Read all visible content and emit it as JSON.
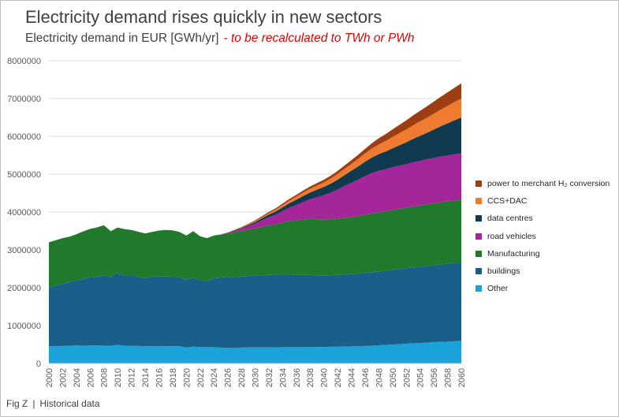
{
  "title": "Electricity demand rises quickly in new sectors",
  "subtitle": "Electricity demand in EUR [GWh/yr]",
  "subtitle_note": "- to be recalculated to TWh or PWh",
  "footer": {
    "fig": "Fig Z",
    "caption": "Historical data"
  },
  "chart_data": {
    "type": "area",
    "stacked": true,
    "x": [
      2000,
      2001,
      2002,
      2003,
      2004,
      2005,
      2006,
      2007,
      2008,
      2009,
      2010,
      2011,
      2012,
      2013,
      2014,
      2015,
      2016,
      2017,
      2018,
      2019,
      2020,
      2021,
      2022,
      2023,
      2024,
      2025,
      2026,
      2027,
      2028,
      2029,
      2030,
      2031,
      2032,
      2033,
      2034,
      2035,
      2036,
      2037,
      2038,
      2039,
      2040,
      2041,
      2042,
      2043,
      2044,
      2045,
      2046,
      2047,
      2048,
      2049,
      2050,
      2051,
      2052,
      2053,
      2054,
      2055,
      2056,
      2057,
      2058,
      2059,
      2060
    ],
    "x_ticks": [
      "2000",
      "2002",
      "2004",
      "2006",
      "2008",
      "2010",
      "2012",
      "2014",
      "2016",
      "2018",
      "2020",
      "2022",
      "2024",
      "2026",
      "2028",
      "2030",
      "2032",
      "2034",
      "2036",
      "2038",
      "2040",
      "2042",
      "2044",
      "2046",
      "2048",
      "2050",
      "2052",
      "2054",
      "2056",
      "2058",
      "2060"
    ],
    "y_ticks": [
      "0",
      "1000000",
      "2000000",
      "3000000",
      "4000000",
      "5000000",
      "6000000",
      "7000000",
      "8000000"
    ],
    "ylim": [
      0,
      8000000
    ],
    "grid": true,
    "legend_position": "right",
    "series": [
      {
        "name": "Other",
        "color": "#1aa3d9",
        "values": [
          450000,
          455000,
          460000,
          470000,
          475000,
          470000,
          475000,
          475000,
          470000,
          465000,
          490000,
          470000,
          465000,
          460000,
          455000,
          455000,
          450000,
          455000,
          455000,
          455000,
          420000,
          445000,
          430000,
          430000,
          430000,
          420000,
          410000,
          410000,
          420000,
          425000,
          425000,
          425000,
          425000,
          425000,
          430000,
          430000,
          430000,
          430000,
          430000,
          435000,
          435000,
          440000,
          440000,
          445000,
          450000,
          455000,
          460000,
          470000,
          480000,
          490000,
          500000,
          510000,
          520000,
          530000,
          540000,
          550000,
          560000,
          570000,
          575000,
          585000,
          590000
        ]
      },
      {
        "name": "buildings",
        "color": "#1a5f8a",
        "values": [
          1550000,
          1600000,
          1640000,
          1680000,
          1720000,
          1760000,
          1800000,
          1820000,
          1850000,
          1820000,
          1900000,
          1850000,
          1860000,
          1830000,
          1800000,
          1840000,
          1860000,
          1840000,
          1840000,
          1830000,
          1790000,
          1820000,
          1770000,
          1740000,
          1830000,
          1850000,
          1870000,
          1880000,
          1880000,
          1890000,
          1900000,
          1905000,
          1910000,
          1925000,
          1915000,
          1915000,
          1905000,
          1905000,
          1905000,
          1895000,
          1890000,
          1890000,
          1895000,
          1900000,
          1910000,
          1920000,
          1930000,
          1940000,
          1950000,
          1960000,
          1975000,
          1985000,
          1995000,
          2005000,
          2015000,
          2025000,
          2035000,
          2045000,
          2060000,
          2070000,
          2080000
        ]
      },
      {
        "name": "Manufacturing",
        "color": "#217a2c",
        "values": [
          1200000,
          1200000,
          1210000,
          1200000,
          1220000,
          1260000,
          1280000,
          1300000,
          1330000,
          1210000,
          1200000,
          1230000,
          1200000,
          1190000,
          1180000,
          1180000,
          1200000,
          1230000,
          1220000,
          1190000,
          1170000,
          1230000,
          1160000,
          1140000,
          1120000,
          1130000,
          1150000,
          1180000,
          1200000,
          1220000,
          1240000,
          1280000,
          1320000,
          1330000,
          1380000,
          1420000,
          1450000,
          1470000,
          1480000,
          1480000,
          1480000,
          1480000,
          1490000,
          1500000,
          1510000,
          1520000,
          1540000,
          1550000,
          1560000,
          1570000,
          1580000,
          1590000,
          1600000,
          1610000,
          1620000,
          1630000,
          1635000,
          1640000,
          1645000,
          1650000,
          1655000
        ]
      },
      {
        "name": "road vehicles",
        "color": "#a4269a",
        "values": [
          0,
          0,
          0,
          0,
          0,
          0,
          0,
          0,
          0,
          0,
          0,
          0,
          0,
          0,
          0,
          0,
          0,
          0,
          0,
          0,
          0,
          0,
          0,
          0,
          0,
          5000,
          15000,
          30000,
          60000,
          90000,
          130000,
          170000,
          210000,
          250000,
          300000,
          350000,
          400000,
          460000,
          520000,
          580000,
          640000,
          700000,
          770000,
          840000,
          900000,
          960000,
          1020000,
          1070000,
          1100000,
          1110000,
          1130000,
          1140000,
          1150000,
          1170000,
          1180000,
          1190000,
          1200000,
          1210000,
          1215000,
          1220000,
          1225000
        ]
      },
      {
        "name": "data centres",
        "color": "#0f3a50",
        "values": [
          0,
          0,
          0,
          0,
          0,
          0,
          0,
          0,
          0,
          0,
          0,
          0,
          0,
          0,
          0,
          0,
          0,
          0,
          0,
          0,
          0,
          0,
          0,
          0,
          0,
          5000,
          10000,
          15000,
          20000,
          30000,
          40000,
          55000,
          70000,
          85000,
          100000,
          120000,
          140000,
          160000,
          180000,
          200000,
          220000,
          240000,
          260000,
          290000,
          320000,
          350000,
          380000,
          410000,
          440000,
          470000,
          500000,
          540000,
          580000,
          620000,
          660000,
          700000,
          750000,
          800000,
          850000,
          900000,
          950000
        ]
      },
      {
        "name": "CCS+DAC",
        "color": "#ee7b30",
        "values": [
          0,
          0,
          0,
          0,
          0,
          0,
          0,
          0,
          0,
          0,
          0,
          0,
          0,
          0,
          0,
          0,
          0,
          0,
          0,
          0,
          0,
          0,
          0,
          0,
          0,
          0,
          5000,
          10000,
          15000,
          20000,
          25000,
          30000,
          40000,
          50000,
          60000,
          70000,
          80000,
          90000,
          100000,
          110000,
          120000,
          135000,
          150000,
          165000,
          180000,
          200000,
          220000,
          240000,
          260000,
          280000,
          300000,
          320000,
          340000,
          360000,
          380000,
          400000,
          420000,
          440000,
          460000,
          480000,
          500000
        ]
      },
      {
        "name": "power to merchant H₂ conversion",
        "color": "#9c3d12",
        "values": [
          0,
          0,
          0,
          0,
          0,
          0,
          0,
          0,
          0,
          0,
          0,
          0,
          0,
          0,
          0,
          0,
          0,
          0,
          0,
          0,
          0,
          0,
          0,
          0,
          0,
          0,
          0,
          5000,
          10000,
          15000,
          20000,
          25000,
          30000,
          35000,
          40000,
          45000,
          50000,
          55000,
          60000,
          65000,
          70000,
          75000,
          80000,
          90000,
          100000,
          110000,
          120000,
          140000,
          160000,
          180000,
          200000,
          220000,
          240000,
          260000,
          280000,
          300000,
          320000,
          340000,
          360000,
          380000,
          400000
        ]
      }
    ]
  }
}
